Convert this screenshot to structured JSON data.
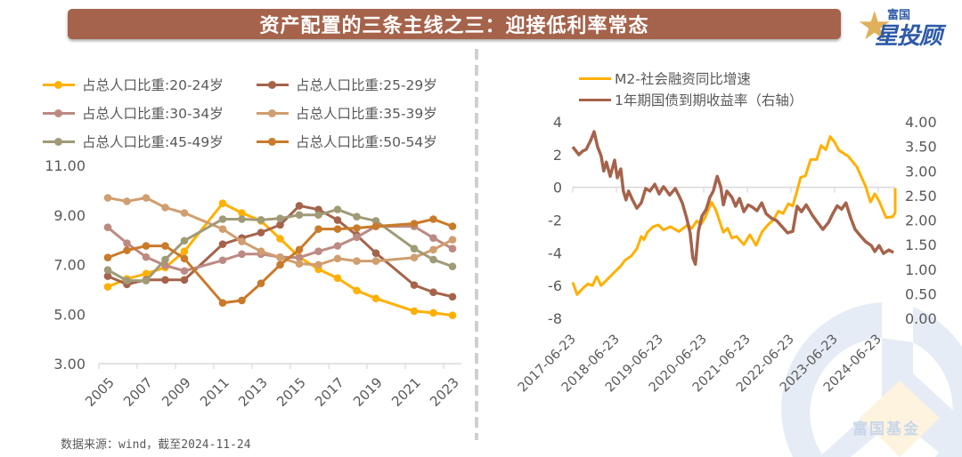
{
  "header": {
    "title": "资产配置的三条主线之三：迎接低利率常态",
    "logo_small": "富国",
    "logo_big": "星投顾",
    "logo_star_icon": "star-icon"
  },
  "watermark": {
    "text": "富国基金"
  },
  "footer": {
    "source": "数据来源：wind，截至2024-11-24"
  },
  "colors": {
    "title_bg": "#a5634b",
    "s2024": "#ffb000",
    "s2529": "#a5634b",
    "s3034": "#bc8a82",
    "s3539": "#d09e6f",
    "s4549": "#a09a77",
    "s5054": "#c97a2a",
    "m2": "#ffb000",
    "yield": "#a5634b"
  },
  "chart_data": [
    {
      "type": "line",
      "title": "",
      "xlabel": "",
      "ylabel": "",
      "categories": [
        "2005",
        "2006",
        "2007",
        "2008",
        "2009",
        "2010",
        "2011",
        "2012",
        "2013",
        "2014",
        "2015",
        "2016",
        "2017",
        "2018",
        "2019",
        "2020",
        "2021",
        "2022",
        "2023"
      ],
      "x_tick_labels": [
        "2005",
        "2007",
        "2009",
        "2011",
        "2013",
        "2015",
        "2017",
        "2019",
        "2021",
        "2023"
      ],
      "ylim": [
        3,
        11
      ],
      "y_tick_labels": [
        "11.00",
        "9.00",
        "7.00",
        "5.00",
        "3.00"
      ],
      "y_ticks": [
        11,
        9,
        7,
        5,
        3
      ],
      "grid": false,
      "legend": "top",
      "series": [
        {
          "name": "占总人口比重:20-24岁",
          "color_key": "s2024",
          "values": [
            6.1,
            6.42,
            6.63,
            6.88,
            7.53,
            null,
            9.47,
            9.08,
            8.76,
            8.04,
            7.3,
            6.81,
            6.45,
            5.95,
            5.63,
            null,
            5.12,
            5.05,
            4.95
          ]
        },
        {
          "name": "占总人口比重:25-29岁",
          "color_key": "s2529",
          "values": [
            6.53,
            6.2,
            6.38,
            6.38,
            6.38,
            null,
            7.82,
            8.07,
            8.29,
            8.6,
            9.37,
            9.22,
            8.79,
            8.18,
            7.46,
            null,
            6.17,
            5.88,
            5.7
          ]
        },
        {
          "name": "占总人口比重:30-34岁",
          "color_key": "s3034",
          "values": [
            8.5,
            7.86,
            7.3,
            6.96,
            6.74,
            null,
            7.17,
            7.42,
            7.42,
            7.3,
            7.28,
            7.53,
            7.75,
            8.1,
            8.54,
            null,
            8.54,
            8.07,
            7.64
          ]
        },
        {
          "name": "占总人口比重:35-39岁",
          "color_key": "s3539",
          "values": [
            9.69,
            9.55,
            9.69,
            9.3,
            9.08,
            null,
            8.43,
            7.93,
            7.53,
            7.28,
            7.03,
            6.99,
            7.24,
            7.14,
            7.14,
            null,
            7.28,
            7.6,
            8.0
          ]
        },
        {
          "name": "占总人口比重:45-49岁",
          "color_key": "s4549",
          "values": [
            6.78,
            6.35,
            6.35,
            7.2,
            7.96,
            null,
            8.83,
            8.83,
            8.8,
            8.86,
            9.0,
            9.0,
            9.22,
            8.93,
            8.76,
            null,
            7.64,
            7.2,
            6.92
          ]
        },
        {
          "name": "占总人口比重:50-54岁",
          "color_key": "s5054",
          "values": [
            7.28,
            7.57,
            7.75,
            7.75,
            7.24,
            null,
            5.45,
            5.55,
            6.24,
            6.99,
            7.6,
            8.43,
            8.43,
            8.47,
            8.54,
            null,
            8.65,
            8.83,
            8.54
          ]
        }
      ]
    },
    {
      "type": "line",
      "title": "",
      "xlabel": "",
      "x_tick_labels": [
        "2017-06-23",
        "2018-06-23",
        "2019-06-23",
        "2020-06-23",
        "2021-06-23",
        "2022-06-23",
        "2023-06-23",
        "2024-06-23"
      ],
      "x_range_years": [
        2017.47,
        2024.89
      ],
      "ylim_left": [
        -8,
        4
      ],
      "y_left_tick_labels": [
        "4",
        "2",
        "0",
        "-2",
        "-4",
        "-6",
        "-8"
      ],
      "y_left_ticks": [
        4,
        2,
        0,
        -2,
        -4,
        -6,
        -8
      ],
      "ylim_right": [
        0,
        4
      ],
      "y_right_tick_labels": [
        "4.00",
        "3.50",
        "3.00",
        "2.50",
        "2.00",
        "1.50",
        "1.00",
        "0.50",
        "0.00"
      ],
      "y_right_ticks": [
        4,
        3.5,
        3,
        2.5,
        2,
        1.5,
        1,
        0.5,
        0
      ],
      "grid": false,
      "legend": "top-left",
      "series": [
        {
          "name": "M2-社会融资同比增速",
          "axis": "left",
          "color_key": "m2",
          "points": [
            [
              2017.47,
              -5.8
            ],
            [
              2017.57,
              -6.55
            ],
            [
              2017.71,
              -6.15
            ],
            [
              2017.82,
              -5.9
            ],
            [
              2017.92,
              -6.0
            ],
            [
              2018.02,
              -5.45
            ],
            [
              2018.12,
              -6.0
            ],
            [
              2018.57,
              -4.8
            ],
            [
              2018.67,
              -4.45
            ],
            [
              2018.81,
              -4.2
            ],
            [
              2018.94,
              -3.75
            ],
            [
              2019.04,
              -3.0
            ],
            [
              2019.1,
              -3.2
            ],
            [
              2019.18,
              -2.75
            ],
            [
              2019.31,
              -2.4
            ],
            [
              2019.43,
              -2.3
            ],
            [
              2019.55,
              -2.6
            ],
            [
              2019.71,
              -2.4
            ],
            [
              2019.9,
              -2.7
            ],
            [
              2020.1,
              -2.3
            ],
            [
              2020.2,
              -2.5
            ],
            [
              2020.31,
              -2.05
            ],
            [
              2020.41,
              -2.25
            ],
            [
              2020.51,
              -1.8
            ],
            [
              2020.65,
              -0.9
            ],
            [
              2020.75,
              -1.4
            ],
            [
              2020.92,
              -2.75
            ],
            [
              2021.02,
              -2.5
            ],
            [
              2021.12,
              -3.1
            ],
            [
              2021.22,
              -3.0
            ],
            [
              2021.39,
              -3.5
            ],
            [
              2021.53,
              -2.9
            ],
            [
              2021.67,
              -3.55
            ],
            [
              2021.8,
              -2.75
            ],
            [
              2021.94,
              -2.3
            ],
            [
              2022.08,
              -1.95
            ],
            [
              2022.18,
              -1.45
            ],
            [
              2022.29,
              -1.6
            ],
            [
              2022.41,
              -1.0
            ],
            [
              2022.51,
              -1.15
            ],
            [
              2022.61,
              -0.2
            ],
            [
              2022.69,
              0.6
            ],
            [
              2022.8,
              0.7
            ],
            [
              2022.92,
              1.7
            ],
            [
              2023.06,
              1.7
            ],
            [
              2023.16,
              2.55
            ],
            [
              2023.27,
              2.3
            ],
            [
              2023.37,
              3.1
            ],
            [
              2023.47,
              2.75
            ],
            [
              2023.57,
              2.25
            ],
            [
              2023.78,
              1.9
            ],
            [
              2023.98,
              1.25
            ],
            [
              2024.18,
              0.05
            ],
            [
              2024.29,
              -0.9
            ],
            [
              2024.39,
              -0.4
            ],
            [
              2024.49,
              -0.85
            ],
            [
              2024.65,
              -1.85
            ],
            [
              2024.8,
              -1.8
            ],
            [
              2024.9,
              -1.55
            ],
            [
              2025.1,
              -0.4
            ],
            [
              2025.18,
              -0.05
            ]
          ]
        },
        {
          "name": "1年期国债到期收益率（右轴）",
          "axis": "right",
          "color_key": "yield",
          "points": [
            [
              2017.47,
              3.49
            ],
            [
              2017.61,
              3.33
            ],
            [
              2017.69,
              3.4
            ],
            [
              2017.78,
              3.44
            ],
            [
              2017.88,
              3.62
            ],
            [
              2017.96,
              3.8
            ],
            [
              2018.04,
              3.49
            ],
            [
              2018.12,
              3.31
            ],
            [
              2018.18,
              3.0
            ],
            [
              2018.24,
              3.18
            ],
            [
              2018.33,
              2.89
            ],
            [
              2018.43,
              3.22
            ],
            [
              2018.49,
              2.86
            ],
            [
              2018.57,
              3.04
            ],
            [
              2018.63,
              2.59
            ],
            [
              2018.69,
              2.41
            ],
            [
              2018.75,
              2.59
            ],
            [
              2018.84,
              2.41
            ],
            [
              2018.94,
              2.24
            ],
            [
              2019.04,
              2.35
            ],
            [
              2019.14,
              2.64
            ],
            [
              2019.24,
              2.59
            ],
            [
              2019.35,
              2.73
            ],
            [
              2019.45,
              2.53
            ],
            [
              2019.55,
              2.68
            ],
            [
              2019.69,
              2.51
            ],
            [
              2019.82,
              2.64
            ],
            [
              2019.9,
              2.5
            ],
            [
              2019.98,
              2.35
            ],
            [
              2020.08,
              2.04
            ],
            [
              2020.16,
              1.74
            ],
            [
              2020.22,
              1.23
            ],
            [
              2020.28,
              1.1
            ],
            [
              2020.35,
              1.77
            ],
            [
              2020.43,
              2.08
            ],
            [
              2020.53,
              2.22
            ],
            [
              2020.61,
              2.46
            ],
            [
              2020.69,
              2.59
            ],
            [
              2020.78,
              2.89
            ],
            [
              2020.86,
              2.68
            ],
            [
              2020.92,
              2.31
            ],
            [
              2021.0,
              2.59
            ],
            [
              2021.12,
              2.46
            ],
            [
              2021.2,
              2.28
            ],
            [
              2021.29,
              2.44
            ],
            [
              2021.39,
              2.17
            ],
            [
              2021.49,
              2.31
            ],
            [
              2021.59,
              2.26
            ],
            [
              2021.69,
              2.19
            ],
            [
              2021.8,
              2.35
            ],
            [
              2021.9,
              2.13
            ],
            [
              2022.02,
              2.04
            ],
            [
              2022.14,
              1.99
            ],
            [
              2022.27,
              1.86
            ],
            [
              2022.39,
              1.74
            ],
            [
              2022.51,
              1.77
            ],
            [
              2022.61,
              2.28
            ],
            [
              2022.71,
              2.17
            ],
            [
              2022.82,
              2.31
            ],
            [
              2022.96,
              2.1
            ],
            [
              2023.08,
              1.95
            ],
            [
              2023.2,
              1.81
            ],
            [
              2023.33,
              1.95
            ],
            [
              2023.43,
              2.13
            ],
            [
              2023.53,
              2.29
            ],
            [
              2023.63,
              2.22
            ],
            [
              2023.73,
              2.35
            ],
            [
              2023.84,
              2.04
            ],
            [
              2023.94,
              1.81
            ],
            [
              2024.06,
              1.68
            ],
            [
              2024.18,
              1.56
            ],
            [
              2024.31,
              1.48
            ],
            [
              2024.39,
              1.36
            ],
            [
              2024.49,
              1.48
            ],
            [
              2024.59,
              1.32
            ],
            [
              2024.71,
              1.39
            ],
            [
              2024.82,
              1.34
            ]
          ]
        }
      ]
    }
  ]
}
